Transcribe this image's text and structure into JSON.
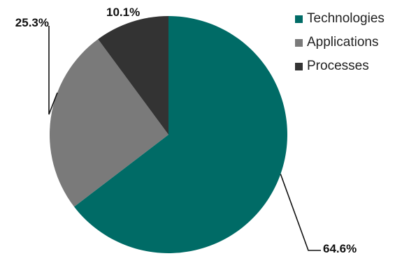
{
  "chart_data": {
    "type": "pie",
    "start_angle": "top",
    "direction": "clockwise",
    "legend_position": "top-right",
    "slices": [
      {
        "label": "Technologies",
        "value": 64.6,
        "value_label": "64.6%",
        "color": "#006b66"
      },
      {
        "label": "Applications",
        "value": 25.3,
        "value_label": "25.3%",
        "color": "#7a7a7a"
      },
      {
        "label": "Processes",
        "value": 10.1,
        "value_label": "10.1%",
        "color": "#333333"
      }
    ]
  }
}
